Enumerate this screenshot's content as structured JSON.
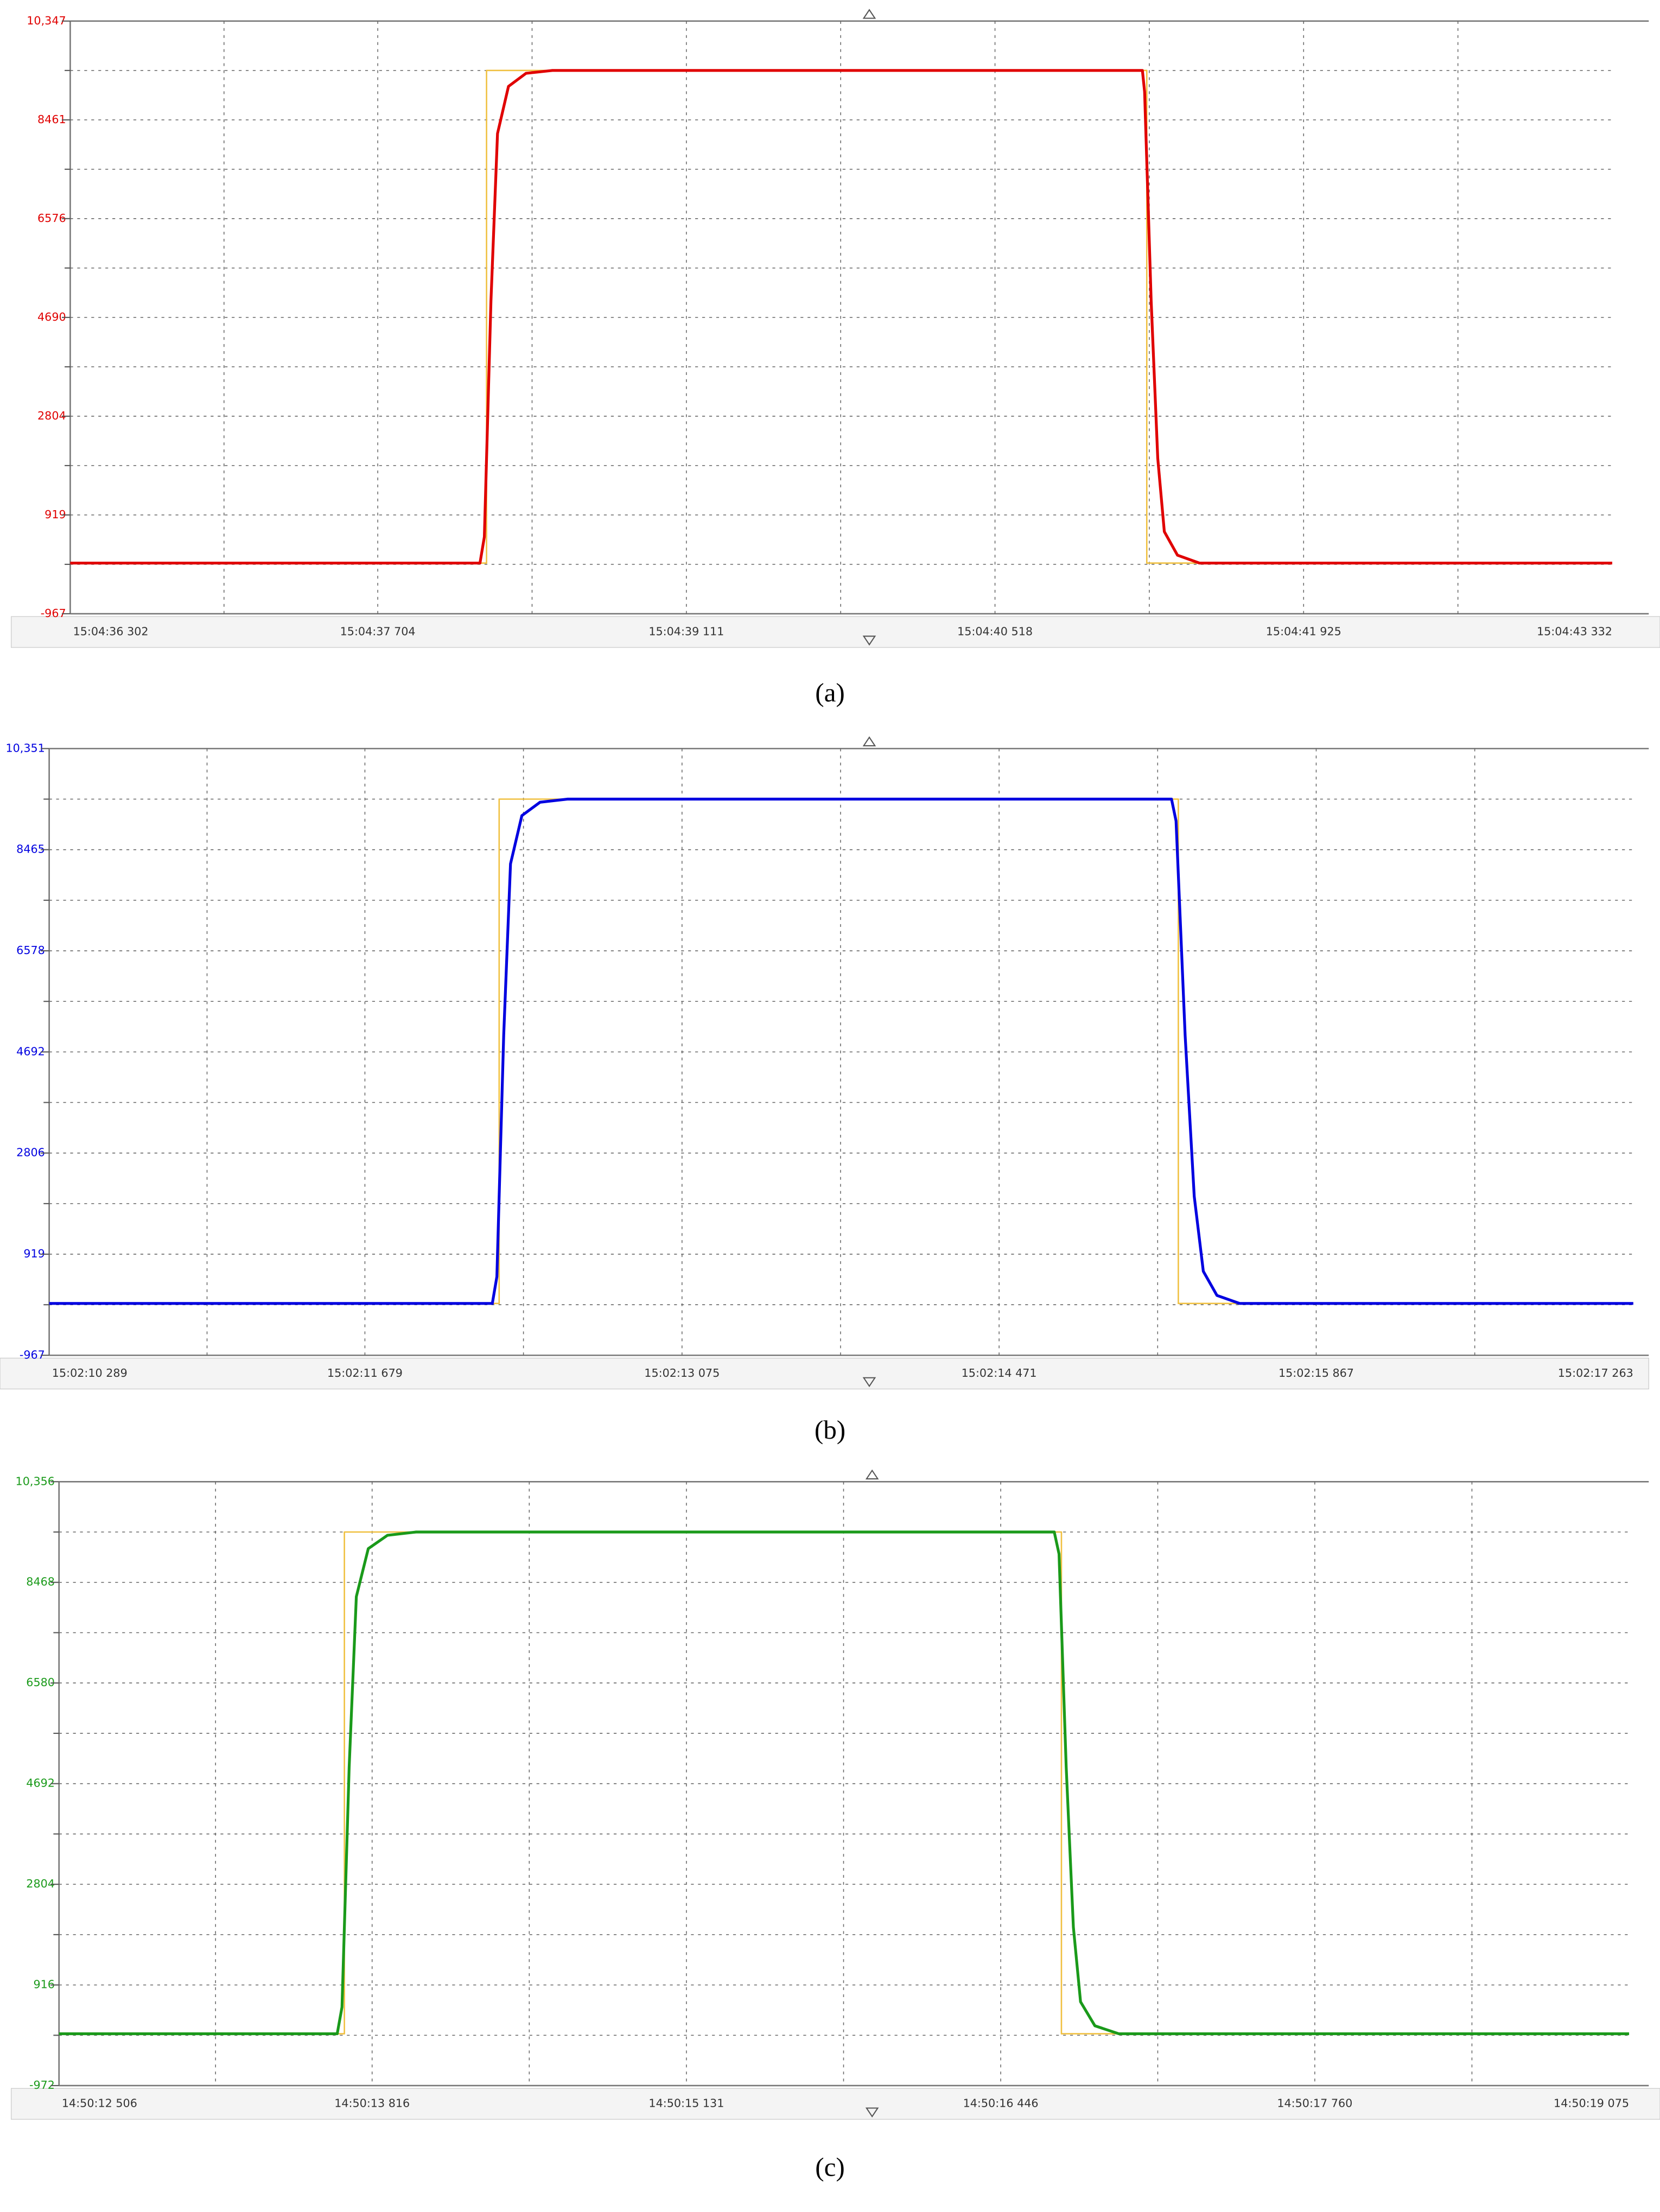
{
  "chart_data": [
    {
      "type": "line",
      "caption": "(a)",
      "color": "#e00000",
      "xlim": [
        54276.302,
        54283.332
      ],
      "xticks": [
        {
          "value": 54276.302,
          "label": "15:04:36 302"
        },
        {
          "value": 54277.704,
          "label": "15:04:37 704"
        },
        {
          "value": 54279.111,
          "label": "15:04:39 111"
        },
        {
          "value": 54280.518,
          "label": "15:04:40 518"
        },
        {
          "value": 54281.925,
          "label": "15:04:41 925"
        },
        {
          "value": 54283.332,
          "label": "15:04:43 332"
        }
      ],
      "ylim": [
        -967,
        10347
      ],
      "yticks": [
        -967,
        919,
        2804,
        4690,
        6576,
        8461,
        {
          "value": 10347,
          "label": "10,347"
        }
      ],
      "grid": true,
      "series": [
        {
          "color": "#e00000",
          "x": [
            54276.302,
            54278.17,
            54278.19,
            54278.22,
            54278.25,
            54278.3,
            54278.38,
            54278.5,
            54281.19,
            54281.2,
            54281.23,
            54281.26,
            54281.29,
            54281.35,
            54281.45,
            54283.332
          ],
          "values": [
            0,
            0,
            500,
            5000,
            8200,
            9100,
            9350,
            9404,
            9404,
            9000,
            5000,
            2000,
            600,
            150,
            0,
            0
          ]
        },
        {
          "color": "#f0c040",
          "x": [
            54276.302,
            54278.2,
            54278.2,
            54281.21,
            54281.21,
            54283.332
          ],
          "values": [
            0,
            0,
            9404,
            9404,
            0,
            0
          ]
        }
      ]
    },
    {
      "type": "line",
      "caption": "(b)",
      "color": "#0000e0",
      "xlim": [
        54130.289,
        54137.263
      ],
      "xticks": [
        {
          "value": 54130.289,
          "label": "15:02:10 289"
        },
        {
          "value": 54131.679,
          "label": "15:02:11 679"
        },
        {
          "value": 54133.075,
          "label": "15:02:13 075"
        },
        {
          "value": 54134.471,
          "label": "15:02:14 471"
        },
        {
          "value": 54135.867,
          "label": "15:02:15 867"
        },
        {
          "value": 54137.263,
          "label": "15:02:17 263"
        }
      ],
      "ylim": [
        -967,
        10351
      ],
      "yticks": [
        -967,
        919,
        2806,
        4692,
        6578,
        8465,
        {
          "value": 10351,
          "label": "10,351"
        }
      ],
      "grid": true,
      "series": [
        {
          "color": "#0000e0",
          "x": [
            54130.289,
            54132.24,
            54132.26,
            54132.29,
            54132.32,
            54132.37,
            54132.45,
            54132.57,
            54135.23,
            54135.25,
            54135.29,
            54135.33,
            54135.37,
            54135.43,
            54135.53,
            54137.263
          ],
          "values": [
            0,
            0,
            500,
            5000,
            8200,
            9100,
            9350,
            9408,
            9408,
            9000,
            5000,
            2000,
            600,
            150,
            0,
            0
          ]
        },
        {
          "color": "#f0c040",
          "x": [
            54130.289,
            54132.27,
            54132.27,
            54135.26,
            54135.26,
            54137.263
          ],
          "values": [
            0,
            0,
            9408,
            9408,
            0,
            0
          ]
        }
      ]
    },
    {
      "type": "line",
      "caption": "(c)",
      "color": "#1a9a1a",
      "xlim": [
        53412.506,
        53419.075
      ],
      "xticks": [
        {
          "value": 53412.506,
          "label": "14:50:12 506"
        },
        {
          "value": 53413.816,
          "label": "14:50:13 816"
        },
        {
          "value": 53415.131,
          "label": "14:50:15 131"
        },
        {
          "value": 53416.446,
          "label": "14:50:16 446"
        },
        {
          "value": 53417.76,
          "label": "14:50:17 760"
        },
        {
          "value": 53419.075,
          "label": "14:50:19 075"
        }
      ],
      "ylim": [
        -972,
        10356
      ],
      "yticks": [
        -972,
        916,
        2804,
        4692,
        6580,
        8468,
        {
          "value": 10356,
          "label": "10,356"
        }
      ],
      "grid": true,
      "series": [
        {
          "color": "#1a9a1a",
          "x": [
            53412.506,
            53413.67,
            53413.69,
            53413.72,
            53413.75,
            53413.8,
            53413.88,
            53414.0,
            53416.67,
            53416.69,
            53416.72,
            53416.75,
            53416.78,
            53416.84,
            53416.94,
            53419.075
          ],
          "values": [
            0,
            0,
            500,
            5000,
            8200,
            9100,
            9350,
            9412,
            9412,
            9000,
            5000,
            2000,
            600,
            150,
            0,
            0
          ]
        },
        {
          "color": "#f0c040",
          "x": [
            53412.506,
            53413.7,
            53413.7,
            53416.7,
            53416.7,
            53419.075
          ],
          "values": [
            0,
            0,
            9412,
            9412,
            0,
            0
          ]
        }
      ]
    }
  ]
}
